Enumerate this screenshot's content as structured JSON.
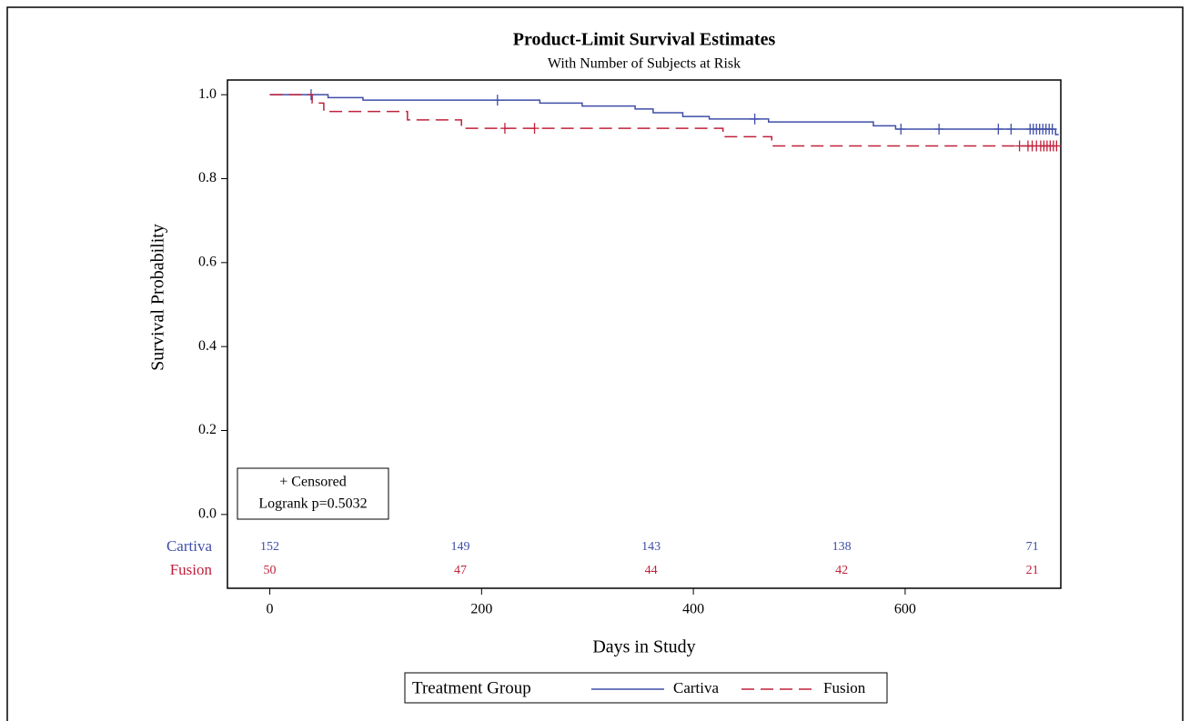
{
  "chart_data": {
    "type": "survival",
    "title": "Product-Limit Survival Estimates",
    "subtitle": "With Number of Subjects at Risk",
    "x_label": "Days in Study",
    "y_label": "Survival Probability",
    "xlim": [
      -40,
      747
    ],
    "ylim": [
      -0.035,
      1.035
    ],
    "xticks": [
      0,
      200,
      400,
      600
    ],
    "yticks": [
      {
        "value": 0,
        "label": "0.0"
      },
      0.2,
      0.4,
      0.6,
      0.8,
      {
        "value": 1,
        "label": "1.0"
      }
    ],
    "inset_legend": [
      "+ Censored",
      "Logrank p=0.5032"
    ],
    "legend_title": "Treatment Group",
    "risk_times": [
      0,
      180,
      360,
      540,
      720
    ],
    "series": [
      {
        "name": "Cartiva",
        "color": "#3f4ea8",
        "line_style": "solid",
        "x": [
          0,
          55,
          88,
          255,
          295,
          345,
          362,
          390,
          415,
          471,
          570,
          591,
          742,
          745
        ],
        "values": [
          1,
          0.993,
          0.987,
          0.98,
          0.973,
          0.966,
          0.957,
          0.948,
          0.942,
          0.935,
          0.926,
          0.918,
          0.905,
          0.905
        ],
        "censored_x": [
          39,
          215,
          458,
          596,
          632,
          688,
          700,
          718,
          721,
          724,
          727,
          730,
          733,
          736,
          739
        ],
        "censored_values": [
          1,
          0.987,
          0.942,
          0.918,
          0.918,
          0.918,
          0.918,
          0.918,
          0.918,
          0.918,
          0.918,
          0.918,
          0.918,
          0.918,
          0.918
        ],
        "at_risk": [
          152,
          149,
          143,
          138,
          71
        ]
      },
      {
        "name": "Fusion",
        "color": "#c0203a",
        "line_style": "dashed",
        "x": [
          0,
          40,
          51,
          130,
          181,
          428,
          474,
          745
        ],
        "values": [
          1,
          0.98,
          0.96,
          0.94,
          0.92,
          0.9,
          0.878,
          0.878
        ],
        "censored_x": [
          222,
          250,
          708,
          716,
          720,
          724,
          728,
          731,
          734,
          737,
          740,
          743
        ],
        "censored_values": [
          0.92,
          0.92,
          0.878,
          0.878,
          0.878,
          0.878,
          0.878,
          0.878,
          0.878,
          0.878,
          0.878,
          0.878
        ],
        "at_risk": [
          50,
          47,
          44,
          42,
          21
        ]
      }
    ]
  }
}
